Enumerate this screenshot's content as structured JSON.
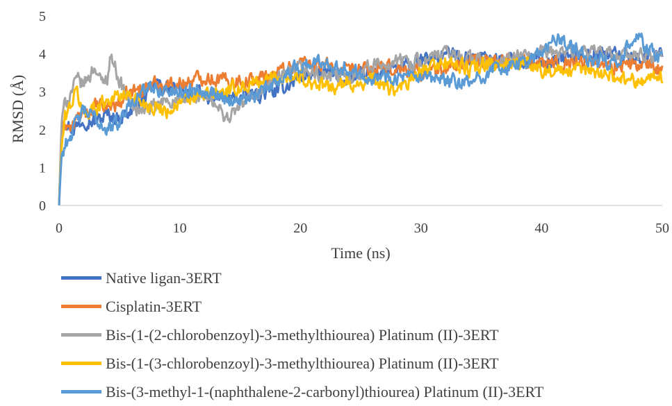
{
  "chart_data": {
    "type": "line",
    "title": "",
    "xlabel": "Time (ns)",
    "ylabel": "RMSD (Å)",
    "xlim": [
      0,
      50
    ],
    "ylim": [
      0,
      5
    ],
    "x_ticks": [
      0,
      10,
      20,
      30,
      40,
      50
    ],
    "y_ticks": [
      0,
      1,
      2,
      3,
      4,
      5
    ],
    "grid": false,
    "legend_position": "bottom",
    "series": [
      {
        "name": "Native ligan-3ERT",
        "color": "#4472C4",
        "x": [
          0,
          0.2,
          0.5,
          1,
          1.5,
          2,
          3,
          4,
          5,
          6,
          7,
          8,
          9,
          10,
          12,
          14,
          16,
          18,
          20,
          22,
          24,
          26,
          28,
          30,
          32,
          34,
          36,
          38,
          40,
          42,
          44,
          46,
          48,
          50
        ],
        "y": [
          0,
          1.9,
          2.3,
          2.0,
          2.1,
          2.3,
          2.2,
          2.4,
          2.3,
          2.5,
          2.8,
          3.2,
          3.1,
          3.0,
          2.9,
          2.8,
          2.9,
          3.0,
          3.4,
          3.5,
          3.3,
          3.5,
          3.6,
          3.8,
          4.0,
          3.9,
          3.9,
          3.8,
          3.8,
          3.9,
          4.0,
          4.0,
          3.9,
          4.0
        ]
      },
      {
        "name": "Cisplatin-3ERT",
        "color": "#ED7D31",
        "x": [
          0,
          0.2,
          0.5,
          1,
          1.5,
          2,
          3,
          4,
          5,
          6,
          7,
          8,
          9,
          10,
          12,
          14,
          16,
          18,
          20,
          22,
          24,
          26,
          28,
          30,
          32,
          34,
          36,
          38,
          40,
          42,
          44,
          46,
          48,
          50
        ],
        "y": [
          0,
          1.8,
          2.2,
          2.0,
          2.3,
          2.4,
          2.6,
          2.6,
          2.7,
          3.0,
          3.1,
          3.2,
          3.2,
          3.2,
          3.4,
          3.3,
          3.3,
          3.5,
          3.8,
          3.7,
          3.5,
          3.6,
          3.6,
          3.5,
          3.6,
          3.8,
          3.8,
          3.9,
          3.7,
          3.8,
          3.8,
          3.7,
          3.7,
          3.6
        ]
      },
      {
        "name": "Bis-(1-(2-chlorobenzoyl)-3-methylthiourea) Platinum (II)-3ERT",
        "color": "#A5A5A5",
        "x": [
          0,
          0.2,
          0.5,
          1,
          1.5,
          2,
          2.5,
          3,
          3.5,
          4,
          4.3,
          5,
          6,
          7,
          8,
          9,
          10,
          12,
          14,
          16,
          18,
          20,
          22,
          24,
          26,
          28,
          30,
          32,
          34,
          36,
          38,
          40,
          42,
          44,
          46,
          48,
          50
        ],
        "y": [
          0,
          2.2,
          2.7,
          3.0,
          3.3,
          3.2,
          3.4,
          3.7,
          3.2,
          3.4,
          4.0,
          3.3,
          2.6,
          2.5,
          2.6,
          2.8,
          2.7,
          2.9,
          2.3,
          2.9,
          3.3,
          3.6,
          3.4,
          3.4,
          3.7,
          3.8,
          3.8,
          4.0,
          3.9,
          3.7,
          3.9,
          4.0,
          4.1,
          4.0,
          4.0,
          3.9,
          4.0
        ]
      },
      {
        "name": "Bis-(1-(3-chlorobenzoyl)-3-methylthiourea) Platinum (II)-3ERT",
        "color": "#FFC000",
        "x": [
          0,
          0.2,
          0.5,
          1,
          1.5,
          2,
          3,
          4,
          5,
          6,
          7,
          8,
          9,
          10,
          12,
          14,
          16,
          18,
          20,
          22,
          24,
          26,
          28,
          30,
          32,
          34,
          36,
          38,
          40,
          42,
          44,
          46,
          48,
          50
        ],
        "y": [
          0,
          1.5,
          2.3,
          2.7,
          3.0,
          2.4,
          2.6,
          2.8,
          2.9,
          2.9,
          2.7,
          2.6,
          2.5,
          2.7,
          2.9,
          3.0,
          3.2,
          3.4,
          3.4,
          3.1,
          3.2,
          3.3,
          3.0,
          3.5,
          3.8,
          3.6,
          3.7,
          3.8,
          3.6,
          3.5,
          3.6,
          3.4,
          3.3,
          3.4
        ]
      },
      {
        "name": "Bis-(3-methyl-1-(naphthalene-2-carbonyl)thiourea) Platinum (II)-3ERT",
        "color": "#5B9BD5",
        "x": [
          0,
          0.2,
          0.5,
          1,
          1.5,
          2,
          3,
          4,
          5,
          6,
          7,
          8,
          9,
          10,
          12,
          14,
          16,
          18,
          20,
          22,
          24,
          26,
          28,
          30,
          32,
          34,
          36,
          38,
          40,
          41,
          42,
          44,
          46,
          47,
          48,
          49,
          50
        ],
        "y": [
          0,
          1.3,
          1.6,
          1.9,
          2.2,
          2.5,
          2.3,
          2.0,
          2.2,
          2.8,
          3.0,
          3.1,
          3.0,
          3.0,
          3.1,
          2.8,
          2.8,
          3.3,
          3.7,
          3.8,
          3.6,
          3.4,
          3.4,
          3.3,
          3.3,
          3.2,
          3.6,
          3.7,
          4.0,
          4.4,
          4.3,
          3.8,
          3.8,
          4.1,
          4.4,
          4.1,
          3.8
        ]
      }
    ]
  }
}
